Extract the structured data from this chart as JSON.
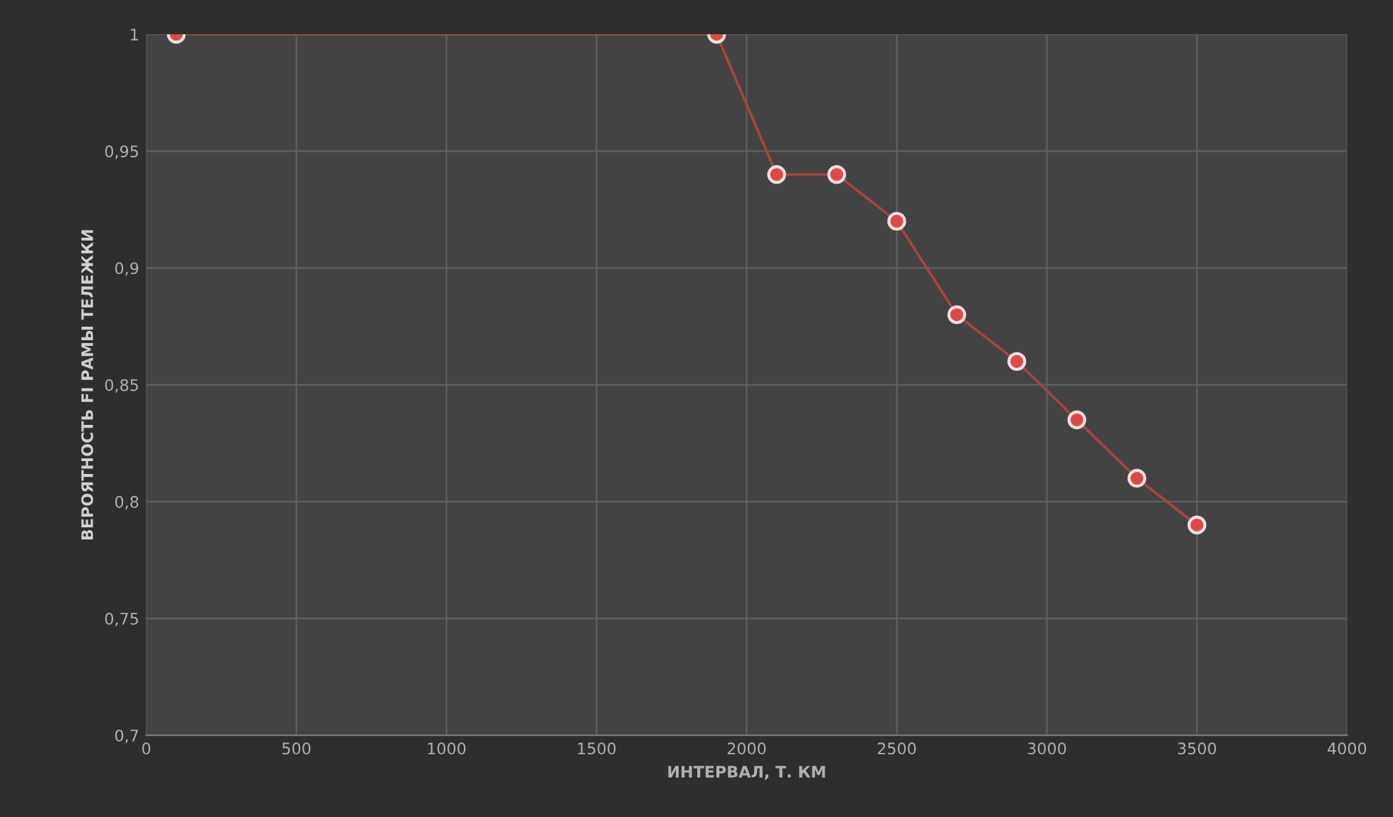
{
  "chart_data": {
    "type": "line",
    "xlabel": "ИНТЕРВАЛ, Т. КМ",
    "ylabel": "ВЕРОЯТНОСТЬ FI РАМЫ ТЕЛЕЖКИ",
    "x": [
      100,
      1900,
      2100,
      2300,
      2500,
      2700,
      2900,
      3100,
      3300,
      3500
    ],
    "series": [
      {
        "color": "#a8453c",
        "values": [
          1,
          1,
          0.94,
          0.94,
          0.92,
          0.88,
          0.86,
          0.835,
          0.81,
          0.79
        ]
      }
    ],
    "xlim": [
      0,
      4000
    ],
    "xticks": [
      0,
      500,
      1000,
      1500,
      2000,
      2500,
      3000,
      3500,
      4000
    ],
    "ylim": [
      0.7,
      1
    ],
    "yticks": [
      {
        "value": 0.7,
        "label": "0,7"
      },
      {
        "value": 0.75,
        "label": "0,75"
      },
      {
        "value": 0.8,
        "label": "0,8"
      },
      {
        "value": 0.85,
        "label": "0,85"
      },
      {
        "value": 0.9,
        "label": "0,9"
      },
      {
        "value": 0.95,
        "label": "0,95"
      },
      {
        "value": 1,
        "label": "1"
      }
    ],
    "grid": true,
    "marker": "circle",
    "line_style": "solid",
    "legend": false
  }
}
